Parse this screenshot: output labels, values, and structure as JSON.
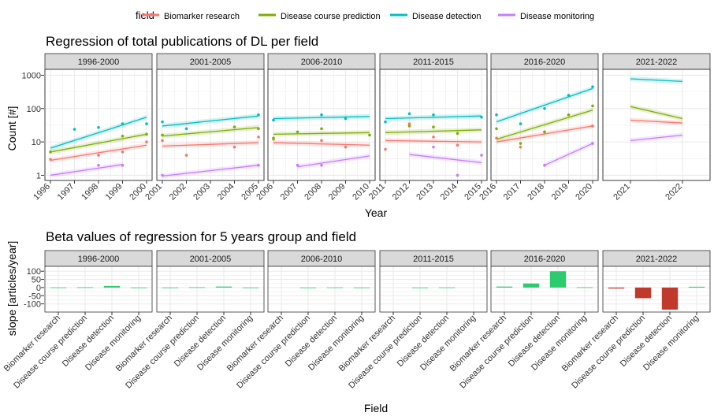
{
  "legend": {
    "title": "field",
    "position": "top",
    "items": [
      {
        "label": "Biomarker research",
        "color": "#F8766D"
      },
      {
        "label": "Disease course prediction",
        "color": "#7CAE00"
      },
      {
        "label": "Disease detection",
        "color": "#00BFC4"
      },
      {
        "label": "Disease monitoring",
        "color": "#C77CFF"
      }
    ]
  },
  "chart_data": [
    {
      "type": "scatter",
      "title": "Regression of total publications of DL per field",
      "xlabel": "Year",
      "ylabel": "Count [#]",
      "y_scale": "log10",
      "ylim": [
        0.7,
        1500
      ],
      "yticks": [
        "1",
        "10",
        "100",
        "1000"
      ],
      "grid": true,
      "panels": [
        {
          "label": "1996-2000",
          "x_ticks": [
            "1996",
            "1997",
            "1998",
            "1999",
            "2000"
          ],
          "points": [
            {
              "series": "Biomarker research",
              "x": 1996,
              "y": 3
            },
            {
              "series": "Biomarker research",
              "x": 1998,
              "y": 4
            },
            {
              "series": "Biomarker research",
              "x": 1999,
              "y": 5
            },
            {
              "series": "Biomarker research",
              "x": 2000,
              "y": 10
            },
            {
              "series": "Disease course prediction",
              "x": 1996,
              "y": 5
            },
            {
              "series": "Disease course prediction",
              "x": 1999,
              "y": 15
            },
            {
              "series": "Disease course prediction",
              "x": 2000,
              "y": 17
            },
            {
              "series": "Disease detection",
              "x": 1997,
              "y": 24
            },
            {
              "series": "Disease detection",
              "x": 1998,
              "y": 27
            },
            {
              "series": "Disease detection",
              "x": 1999,
              "y": 35
            },
            {
              "series": "Disease detection",
              "x": 2000,
              "y": 35
            },
            {
              "series": "Disease monitoring",
              "x": 1998,
              "y": 2
            },
            {
              "series": "Disease monitoring",
              "x": 1999,
              "y": 2
            }
          ],
          "fits": [
            {
              "series": "Biomarker research",
              "x": [
                1996,
                2000
              ],
              "y": [
                2.8,
                8
              ]
            },
            {
              "series": "Disease course prediction",
              "x": [
                1996,
                2000
              ],
              "y": [
                5,
                17
              ]
            },
            {
              "series": "Disease detection",
              "x": [
                1996,
                2000
              ],
              "y": [
                6.5,
                55
              ]
            },
            {
              "series": "Disease monitoring",
              "x": [
                1996,
                1999
              ],
              "y": [
                1,
                2.1
              ]
            }
          ]
        },
        {
          "label": "2001-2005",
          "x_ticks": [
            "2001",
            "2002",
            "2003",
            "2004",
            "2005"
          ],
          "points": [
            {
              "series": "Biomarker research",
              "x": 2001,
              "y": 11
            },
            {
              "series": "Biomarker research",
              "x": 2002,
              "y": 4
            },
            {
              "series": "Biomarker research",
              "x": 2004,
              "y": 7
            },
            {
              "series": "Biomarker research",
              "x": 2005,
              "y": 14
            },
            {
              "series": "Disease course prediction",
              "x": 2001,
              "y": 16
            },
            {
              "series": "Disease course prediction",
              "x": 2004,
              "y": 28
            },
            {
              "series": "Disease course prediction",
              "x": 2005,
              "y": 25
            },
            {
              "series": "Disease detection",
              "x": 2001,
              "y": 40
            },
            {
              "series": "Disease detection",
              "x": 2002,
              "y": 25
            },
            {
              "series": "Disease detection",
              "x": 2005,
              "y": 65
            },
            {
              "series": "Disease monitoring",
              "x": 2001,
              "y": 1
            },
            {
              "series": "Disease monitoring",
              "x": 2005,
              "y": 2
            }
          ],
          "fits": [
            {
              "series": "Biomarker research",
              "x": [
                2001,
                2005
              ],
              "y": [
                7.5,
                9.5
              ]
            },
            {
              "series": "Disease course prediction",
              "x": [
                2001,
                2005
              ],
              "y": [
                15,
                27
              ]
            },
            {
              "series": "Disease detection",
              "x": [
                2001,
                2005
              ],
              "y": [
                30,
                60
              ]
            },
            {
              "series": "Disease monitoring",
              "x": [
                2001,
                2005
              ],
              "y": [
                0.95,
                2
              ]
            }
          ]
        },
        {
          "label": "2006-2010",
          "x_ticks": [
            "2006",
            "2007",
            "2008",
            "2009",
            "2010"
          ],
          "points": [
            {
              "series": "Biomarker research",
              "x": 2006,
              "y": 12
            },
            {
              "series": "Biomarker research",
              "x": 2008,
              "y": 11
            },
            {
              "series": "Biomarker research",
              "x": 2009,
              "y": 7
            },
            {
              "series": "Disease course prediction",
              "x": 2006,
              "y": 13
            },
            {
              "series": "Disease course prediction",
              "x": 2007,
              "y": 20
            },
            {
              "series": "Disease course prediction",
              "x": 2008,
              "y": 25
            },
            {
              "series": "Disease course prediction",
              "x": 2010,
              "y": 16
            },
            {
              "series": "Disease detection",
              "x": 2006,
              "y": 45
            },
            {
              "series": "Disease detection",
              "x": 2008,
              "y": 65
            },
            {
              "series": "Disease detection",
              "x": 2009,
              "y": 50
            },
            {
              "series": "Disease monitoring",
              "x": 2007,
              "y": 2
            },
            {
              "series": "Disease monitoring",
              "x": 2008,
              "y": 2
            }
          ],
          "fits": [
            {
              "series": "Biomarker research",
              "x": [
                2006,
                2010
              ],
              "y": [
                9.5,
                8
              ]
            },
            {
              "series": "Disease course prediction",
              "x": [
                2006,
                2010
              ],
              "y": [
                17,
                19
              ]
            },
            {
              "series": "Disease detection",
              "x": [
                2006,
                2010
              ],
              "y": [
                50,
                58
              ]
            },
            {
              "series": "Disease monitoring",
              "x": [
                2007,
                2010
              ],
              "y": [
                1.8,
                3.8
              ]
            }
          ]
        },
        {
          "label": "2011-2015",
          "x_ticks": [
            "2011",
            "2012",
            "2013",
            "2014",
            "2015"
          ],
          "points": [
            {
              "series": "Biomarker research",
              "x": 2011,
              "y": 6
            },
            {
              "series": "Biomarker research",
              "x": 2012,
              "y": 35
            },
            {
              "series": "Biomarker research",
              "x": 2013,
              "y": 14
            },
            {
              "series": "Biomarker research",
              "x": 2014,
              "y": 8
            },
            {
              "series": "Disease course prediction",
              "x": 2012,
              "y": 30
            },
            {
              "series": "Disease course prediction",
              "x": 2013,
              "y": 28
            },
            {
              "series": "Disease course prediction",
              "x": 2014,
              "y": 18
            },
            {
              "series": "Disease detection",
              "x": 2011,
              "y": 40
            },
            {
              "series": "Disease detection",
              "x": 2012,
              "y": 70
            },
            {
              "series": "Disease detection",
              "x": 2013,
              "y": 65
            },
            {
              "series": "Disease detection",
              "x": 2015,
              "y": 55
            },
            {
              "series": "Disease monitoring",
              "x": 2013,
              "y": 7
            },
            {
              "series": "Disease monitoring",
              "x": 2014,
              "y": 1
            },
            {
              "series": "Disease monitoring",
              "x": 2015,
              "y": 4
            }
          ],
          "fits": [
            {
              "series": "Biomarker research",
              "x": [
                2011,
                2015
              ],
              "y": [
                11,
                10
              ]
            },
            {
              "series": "Disease course prediction",
              "x": [
                2011,
                2015
              ],
              "y": [
                19,
                23
              ]
            },
            {
              "series": "Disease detection",
              "x": [
                2011,
                2015
              ],
              "y": [
                50,
                60
              ]
            },
            {
              "series": "Disease monitoring",
              "x": [
                2012,
                2015
              ],
              "y": [
                4.2,
                2.4
              ]
            }
          ]
        },
        {
          "label": "2016-2020",
          "x_ticks": [
            "2016",
            "2017",
            "2018",
            "2019",
            "2020"
          ],
          "points": [
            {
              "series": "Biomarker research",
              "x": 2016,
              "y": 13
            },
            {
              "series": "Biomarker research",
              "x": 2017,
              "y": 7
            },
            {
              "series": "Biomarker research",
              "x": 2018,
              "y": 20
            },
            {
              "series": "Biomarker research",
              "x": 2020,
              "y": 30
            },
            {
              "series": "Disease course prediction",
              "x": 2016,
              "y": 25
            },
            {
              "series": "Disease course prediction",
              "x": 2017,
              "y": 9
            },
            {
              "series": "Disease course prediction",
              "x": 2018,
              "y": 20
            },
            {
              "series": "Disease course prediction",
              "x": 2019,
              "y": 65
            },
            {
              "series": "Disease course prediction",
              "x": 2020,
              "y": 120
            },
            {
              "series": "Disease detection",
              "x": 2016,
              "y": 65
            },
            {
              "series": "Disease detection",
              "x": 2017,
              "y": 35
            },
            {
              "series": "Disease detection",
              "x": 2018,
              "y": 100
            },
            {
              "series": "Disease detection",
              "x": 2019,
              "y": 250
            },
            {
              "series": "Disease detection",
              "x": 2020,
              "y": 450
            },
            {
              "series": "Disease monitoring",
              "x": 2018,
              "y": 2
            },
            {
              "series": "Disease monitoring",
              "x": 2020,
              "y": 9
            }
          ],
          "fits": [
            {
              "series": "Biomarker research",
              "x": [
                2016,
                2020
              ],
              "y": [
                10,
                30
              ]
            },
            {
              "series": "Disease course prediction",
              "x": [
                2016,
                2020
              ],
              "y": [
                12,
                90
              ]
            },
            {
              "series": "Disease detection",
              "x": [
                2016,
                2020
              ],
              "y": [
                40,
                400
              ]
            },
            {
              "series": "Disease monitoring",
              "x": [
                2018,
                2020
              ],
              "y": [
                2,
                9
              ]
            }
          ]
        },
        {
          "label": "2021-2022",
          "x_ticks": [
            "2021",
            "2022"
          ],
          "points": [],
          "fits": [
            {
              "series": "Biomarker research",
              "x": [
                2021,
                2022
              ],
              "y": [
                45,
                37
              ]
            },
            {
              "series": "Disease course prediction",
              "x": [
                2021,
                2022
              ],
              "y": [
                115,
                50
              ]
            },
            {
              "series": "Disease detection",
              "x": [
                2021,
                2022
              ],
              "y": [
                780,
                650
              ]
            },
            {
              "series": "Disease monitoring",
              "x": [
                2021,
                2022
              ],
              "y": [
                11,
                16
              ]
            }
          ]
        }
      ]
    },
    {
      "type": "bar",
      "title": "Beta values of regression for 5 years group and field",
      "xlabel": "Field",
      "ylabel": "slope [articles/year]",
      "ylim": [
        -150,
        130
      ],
      "yticks": [
        "100",
        "50",
        "0",
        "-50",
        "-100"
      ],
      "grid": true,
      "categories": [
        "Biomarker research",
        "Disease course prediction",
        "Disease detection",
        "Disease monitoring"
      ],
      "colors": {
        "positive": "#2DCB70",
        "negative": "#C0392B"
      },
      "panels": [
        {
          "label": "1996-2000",
          "values": [
            1,
            2,
            10,
            0.5
          ]
        },
        {
          "label": "2001-2005",
          "values": [
            0.5,
            2,
            6,
            0.5
          ]
        },
        {
          "label": "2006-2010",
          "values": [
            0,
            0.5,
            1,
            0.5
          ]
        },
        {
          "label": "2011-2015",
          "values": [
            0,
            0.5,
            1,
            0
          ]
        },
        {
          "label": "2016-2020",
          "values": [
            6,
            25,
            100,
            2
          ]
        },
        {
          "label": "2021-2022",
          "values": [
            -6,
            -65,
            -135,
            5
          ]
        }
      ]
    }
  ]
}
